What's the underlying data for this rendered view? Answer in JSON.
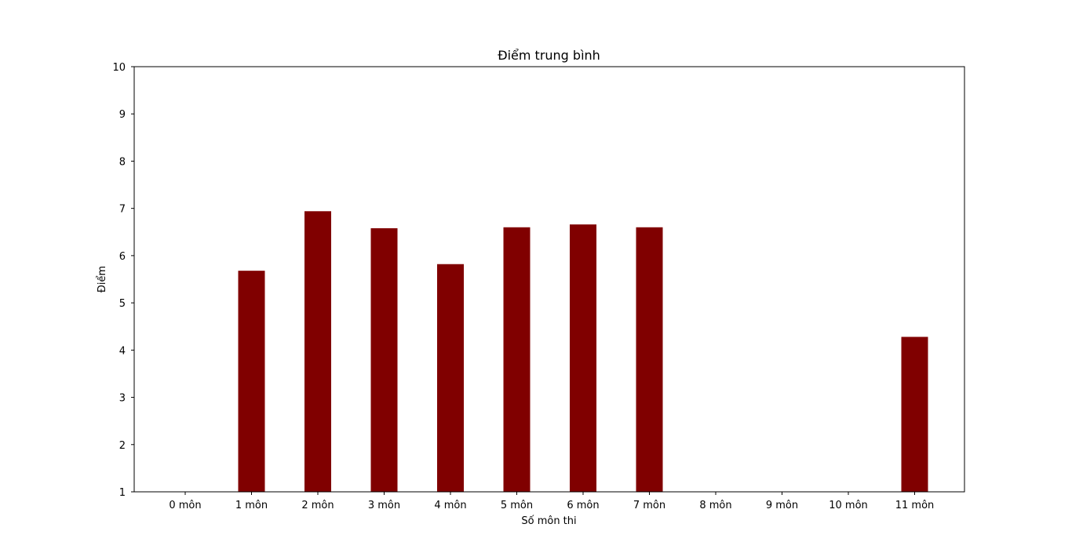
{
  "chart_data": {
    "type": "bar",
    "title": "Điểm trung bình",
    "xlabel": "Số môn thi",
    "ylabel": "Điểm",
    "categories": [
      "0 môn",
      "1 môn",
      "2 môn",
      "3 môn",
      "4 môn",
      "5 môn",
      "6 môn",
      "7 môn",
      "8 môn",
      "9 môn",
      "10 môn",
      "11 môn"
    ],
    "values": [
      null,
      5.68,
      6.94,
      6.58,
      5.82,
      6.6,
      6.66,
      6.6,
      null,
      null,
      null,
      4.28
    ],
    "ylim": [
      1,
      10
    ],
    "yticks": [
      "1",
      "2",
      "3",
      "4",
      "5",
      "6",
      "7",
      "8",
      "9",
      "10"
    ],
    "grid": false,
    "bar_color": "#800000"
  }
}
